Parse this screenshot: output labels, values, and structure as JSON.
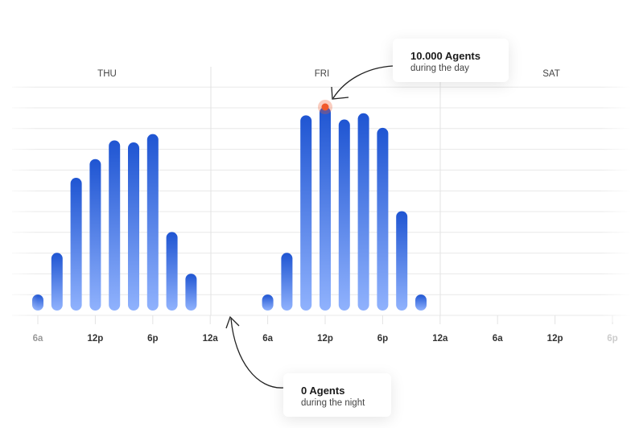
{
  "chart_data": {
    "type": "bar",
    "days": [
      "THU",
      "FRI",
      "SAT"
    ],
    "x_tick_labels": [
      "6a",
      "12p",
      "6p",
      "12a",
      "6a",
      "12p",
      "6p",
      "12a",
      "6a",
      "12p",
      "6p"
    ],
    "series": [
      {
        "day": "THU",
        "hours": [
          "6a",
          "8a",
          "10a",
          "12p",
          "2p",
          "4p",
          "6p",
          "8p",
          "10p"
        ],
        "values": [
          1000,
          3000,
          6600,
          7500,
          8400,
          8300,
          8700,
          4000,
          2000
        ]
      },
      {
        "day": "FRI",
        "hours": [
          "6a",
          "8a",
          "10a",
          "12p",
          "2p",
          "4p",
          "6p",
          "8p",
          "10p"
        ],
        "values": [
          1000,
          3000,
          9600,
          10000,
          9400,
          9700,
          9000,
          5000,
          1000
        ]
      },
      {
        "day": "SAT",
        "hours": [],
        "values": []
      }
    ],
    "ylim": [
      0,
      10000
    ],
    "grid": true,
    "colors": {
      "bar_top": "#1f55d2",
      "bar_bottom": "#90b2fd",
      "highlight": "#f0592a"
    },
    "annotations": [
      {
        "title": "10.000 Agents",
        "subtitle": "during the day"
      },
      {
        "title": "0 Agents",
        "subtitle": "during the night"
      }
    ]
  }
}
